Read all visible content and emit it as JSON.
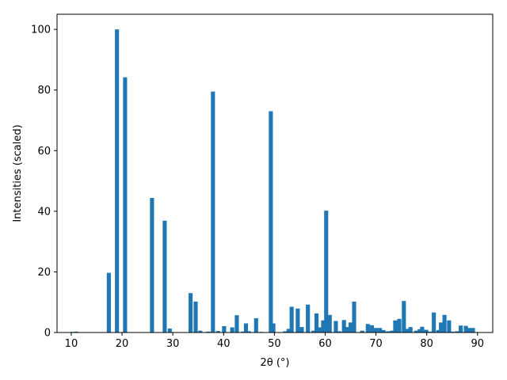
{
  "chart_data": {
    "type": "bar",
    "xlabel": "2θ (°)",
    "ylabel": "Intensities (scaled)",
    "xlim": [
      7.2,
      93.0
    ],
    "ylim": [
      0,
      105
    ],
    "xticks": [
      10,
      20,
      30,
      40,
      50,
      60,
      70,
      80,
      90
    ],
    "yticks": [
      0,
      20,
      40,
      60,
      80,
      100
    ],
    "bar_width": 0.8,
    "color": "#1f77b4",
    "grid": false,
    "legend": "none",
    "x": [
      10.3,
      11.0,
      17.4,
      19.0,
      20.6,
      25.9,
      28.4,
      29.4,
      33.5,
      34.5,
      35.4,
      37.0,
      37.9,
      38.9,
      40.1,
      41.7,
      42.6,
      43.8,
      44.4,
      45.0,
      46.4,
      47.5,
      49.3,
      49.8,
      52.1,
      52.8,
      53.4,
      54.6,
      55.4,
      56.6,
      57.7,
      58.3,
      58.9,
      59.6,
      60.2,
      60.9,
      62.1,
      62.8,
      63.7,
      64.4,
      65.0,
      65.7,
      67.3,
      68.4,
      69.2,
      70.0,
      70.8,
      71.5,
      72.4,
      73.2,
      73.8,
      74.6,
      75.5,
      76.2,
      76.8,
      77.9,
      78.6,
      79.1,
      79.9,
      80.6,
      81.4,
      82.3,
      82.8,
      83.5,
      84.4,
      85.0,
      85.9,
      86.7,
      87.7,
      88.4,
      89.1
    ],
    "values": [
      0.2,
      0.3,
      19.7,
      100.0,
      84.2,
      44.4,
      36.9,
      1.3,
      13.0,
      10.2,
      0.6,
      0.3,
      79.5,
      0.5,
      2.1,
      1.7,
      5.7,
      0.3,
      3.0,
      0.4,
      4.7,
      0.2,
      73.0,
      3.0,
      0.4,
      1.2,
      8.5,
      7.9,
      1.8,
      9.2,
      0.6,
      6.3,
      1.7,
      4.0,
      40.2,
      5.8,
      3.8,
      0.4,
      4.1,
      1.8,
      3.3,
      10.2,
      0.6,
      2.8,
      2.4,
      1.5,
      1.5,
      0.8,
      0.4,
      0.6,
      4.0,
      4.5,
      10.4,
      1.2,
      1.8,
      0.6,
      1.1,
      1.9,
      0.9,
      0.3,
      6.6,
      0.8,
      3.3,
      5.8,
      4.0,
      0.3,
      0.4,
      2.3,
      2.2,
      1.5,
      1.5
    ]
  }
}
